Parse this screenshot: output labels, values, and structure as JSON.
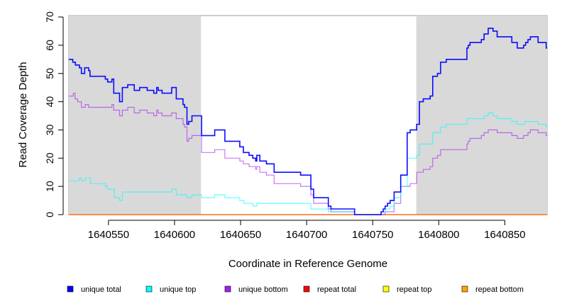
{
  "chart_data": {
    "type": "line",
    "step": true,
    "title": "",
    "xlabel": "Coordinate in Reference Genome",
    "ylabel": "Read Coverage Depth",
    "xlim": [
      1640520,
      1640882
    ],
    "ylim": [
      0,
      70
    ],
    "yticks": [
      0,
      10,
      20,
      30,
      40,
      50,
      60,
      70
    ],
    "xticks": [
      1640550,
      1640600,
      1640650,
      1640700,
      1640750,
      1640800,
      1640850
    ],
    "shaded_regions": [
      [
        1640520,
        1640620
      ],
      [
        1640783,
        1640882
      ]
    ],
    "legend_position": "bottom",
    "series": [
      {
        "name": "unique total",
        "color": "#0000ff",
        "points": [
          [
            1640520,
            55
          ],
          [
            1640523,
            54
          ],
          [
            1640525,
            53
          ],
          [
            1640528,
            52
          ],
          [
            1640529.5,
            50
          ],
          [
            1640532,
            52
          ],
          [
            1640535,
            51
          ],
          [
            1640536,
            49
          ],
          [
            1640547.6,
            48
          ],
          [
            1640549.4,
            47
          ],
          [
            1640552.6,
            48
          ],
          [
            1640554,
            43
          ],
          [
            1640558.4,
            40
          ],
          [
            1640560.5,
            45
          ],
          [
            1640564.6,
            46
          ],
          [
            1640569.5,
            44
          ],
          [
            1640573.6,
            45
          ],
          [
            1640579.3,
            44
          ],
          [
            1640584.3,
            43
          ],
          [
            1640586.5,
            45
          ],
          [
            1640587.6,
            44
          ],
          [
            1640590.6,
            43
          ],
          [
            1640597.8,
            45
          ],
          [
            1640601.3,
            41
          ],
          [
            1640606.4,
            39
          ],
          [
            1640607.6,
            38
          ],
          [
            1640609.4,
            32
          ],
          [
            1640610.7,
            33
          ],
          [
            1640613.2,
            35
          ],
          [
            1640620.5,
            28
          ],
          [
            1640630.4,
            30
          ],
          [
            1640638.1,
            26
          ],
          [
            1640649.4,
            24
          ],
          [
            1640652.1,
            22
          ],
          [
            1640656.4,
            21
          ],
          [
            1640659.2,
            20
          ],
          [
            1640661.4,
            19
          ],
          [
            1640662.3,
            21
          ],
          [
            1640664.6,
            19
          ],
          [
            1640669.5,
            18
          ],
          [
            1640675.4,
            15
          ],
          [
            1640695.4,
            14
          ],
          [
            1640703.2,
            9
          ],
          [
            1640705.3,
            6
          ],
          [
            1640716.4,
            3
          ],
          [
            1640718.4,
            2
          ],
          [
            1640736.3,
            0
          ],
          [
            1640756.4,
            1
          ],
          [
            1640758,
            2
          ],
          [
            1640759.4,
            3
          ],
          [
            1640761.2,
            4
          ],
          [
            1640763.2,
            5
          ],
          [
            1640766.2,
            8
          ],
          [
            1640771.2,
            14
          ],
          [
            1640776.1,
            29
          ],
          [
            1640778.4,
            30
          ],
          [
            1640783.3,
            32
          ],
          [
            1640785.4,
            40
          ],
          [
            1640788.3,
            41
          ],
          [
            1640793.5,
            42
          ],
          [
            1640795.4,
            49
          ],
          [
            1640799,
            50
          ],
          [
            1640801.4,
            54
          ],
          [
            1640805.7,
            55
          ],
          [
            1640821.3,
            59
          ],
          [
            1640822.3,
            60
          ],
          [
            1640823.6,
            61
          ],
          [
            1640832.2,
            62
          ],
          [
            1640834.3,
            64
          ],
          [
            1640837.4,
            66
          ],
          [
            1640841.1,
            65
          ],
          [
            1640844.2,
            63
          ],
          [
            1640855.3,
            61
          ],
          [
            1640859.4,
            59
          ],
          [
            1640864.2,
            60
          ],
          [
            1640865.7,
            61
          ],
          [
            1640867.5,
            62
          ],
          [
            1640869.3,
            63
          ],
          [
            1640875.2,
            61
          ],
          [
            1640881.3,
            59
          ]
        ]
      },
      {
        "name": "unique top",
        "color": "#00ffff",
        "points": [
          [
            1640520,
            12
          ],
          [
            1640527.9,
            13
          ],
          [
            1640529.5,
            12
          ],
          [
            1640532.4,
            13
          ],
          [
            1640536.3,
            11
          ],
          [
            1640547.6,
            10
          ],
          [
            1640549.4,
            9
          ],
          [
            1640554.5,
            6
          ],
          [
            1640558.4,
            5
          ],
          [
            1640560.5,
            8
          ],
          [
            1640597.8,
            9
          ],
          [
            1640601.3,
            7
          ],
          [
            1640609.4,
            6
          ],
          [
            1640613.2,
            7
          ],
          [
            1640620.5,
            6
          ],
          [
            1640630.4,
            7
          ],
          [
            1640638.1,
            6
          ],
          [
            1640649.4,
            5
          ],
          [
            1640652.5,
            4
          ],
          [
            1640659.5,
            3
          ],
          [
            1640662.3,
            4
          ],
          [
            1640703.2,
            2
          ],
          [
            1640716.4,
            1
          ],
          [
            1640736.3,
            0
          ],
          [
            1640756.4,
            1
          ],
          [
            1640759.4,
            2
          ],
          [
            1640763.2,
            3
          ],
          [
            1640766.2,
            6
          ],
          [
            1640771.2,
            10
          ],
          [
            1640776.1,
            20
          ],
          [
            1640783.3,
            21
          ],
          [
            1640785.4,
            25
          ],
          [
            1640795.4,
            29
          ],
          [
            1640801.4,
            31
          ],
          [
            1640805.7,
            32
          ],
          [
            1640821.3,
            34
          ],
          [
            1640834.3,
            35
          ],
          [
            1640837.4,
            36
          ],
          [
            1640841.1,
            35
          ],
          [
            1640844.2,
            34
          ],
          [
            1640855.3,
            33
          ],
          [
            1640859.4,
            32
          ],
          [
            1640865,
            33
          ],
          [
            1640875.2,
            32
          ],
          [
            1640881.3,
            31
          ]
        ]
      },
      {
        "name": "unique bottom",
        "color": "#a020f0",
        "points": [
          [
            1640520,
            42
          ],
          [
            1640523.4,
            43
          ],
          [
            1640524.8,
            41
          ],
          [
            1640526.6,
            40
          ],
          [
            1640529.5,
            38
          ],
          [
            1640532.4,
            39
          ],
          [
            1640534.9,
            38
          ],
          [
            1640552.6,
            39
          ],
          [
            1640553.9,
            37
          ],
          [
            1640558.4,
            35
          ],
          [
            1640560.5,
            37
          ],
          [
            1640564.6,
            38
          ],
          [
            1640569.5,
            36
          ],
          [
            1640573.6,
            37
          ],
          [
            1640579.3,
            36
          ],
          [
            1640584.3,
            35
          ],
          [
            1640586.5,
            37
          ],
          [
            1640587.6,
            36
          ],
          [
            1640590.6,
            35
          ],
          [
            1640597.8,
            36
          ],
          [
            1640601.3,
            34
          ],
          [
            1640606.4,
            32
          ],
          [
            1640607.6,
            31
          ],
          [
            1640609.4,
            26
          ],
          [
            1640610.7,
            27
          ],
          [
            1640613.2,
            28
          ],
          [
            1640620.5,
            22
          ],
          [
            1640630.4,
            23
          ],
          [
            1640638.1,
            20
          ],
          [
            1640649.4,
            19
          ],
          [
            1640652.1,
            18
          ],
          [
            1640656.4,
            17
          ],
          [
            1640661.4,
            16
          ],
          [
            1640662.3,
            17
          ],
          [
            1640664.6,
            15
          ],
          [
            1640669.5,
            14
          ],
          [
            1640675.4,
            11
          ],
          [
            1640695.4,
            10
          ],
          [
            1640703.2,
            7
          ],
          [
            1640705.3,
            4
          ],
          [
            1640716.4,
            2
          ],
          [
            1640718.4,
            1
          ],
          [
            1640736.3,
            0
          ],
          [
            1640759.4,
            1
          ],
          [
            1640766.2,
            4
          ],
          [
            1640771.2,
            10
          ],
          [
            1640778.4,
            11
          ],
          [
            1640783.3,
            15
          ],
          [
            1640788.3,
            16
          ],
          [
            1640793.5,
            17
          ],
          [
            1640795.4,
            20
          ],
          [
            1640799,
            21
          ],
          [
            1640801.4,
            23
          ],
          [
            1640821.3,
            25
          ],
          [
            1640822.3,
            26
          ],
          [
            1640823.6,
            27
          ],
          [
            1640832.2,
            28
          ],
          [
            1640834.3,
            29
          ],
          [
            1640837.4,
            30
          ],
          [
            1640844.2,
            29
          ],
          [
            1640855.3,
            28
          ],
          [
            1640859.4,
            27
          ],
          [
            1640864.2,
            28
          ],
          [
            1640867.5,
            29
          ],
          [
            1640869.3,
            30
          ],
          [
            1640875.2,
            29
          ],
          [
            1640881.3,
            28
          ]
        ]
      },
      {
        "name": "repeat total",
        "color": "#ff0000",
        "points": [
          [
            1640520,
            0
          ]
        ]
      },
      {
        "name": "repeat top",
        "color": "#ffff00",
        "points": [
          [
            1640520,
            0
          ]
        ]
      },
      {
        "name": "repeat bottom",
        "color": "#ffa500",
        "points": [
          [
            1640520,
            0
          ]
        ]
      }
    ]
  }
}
